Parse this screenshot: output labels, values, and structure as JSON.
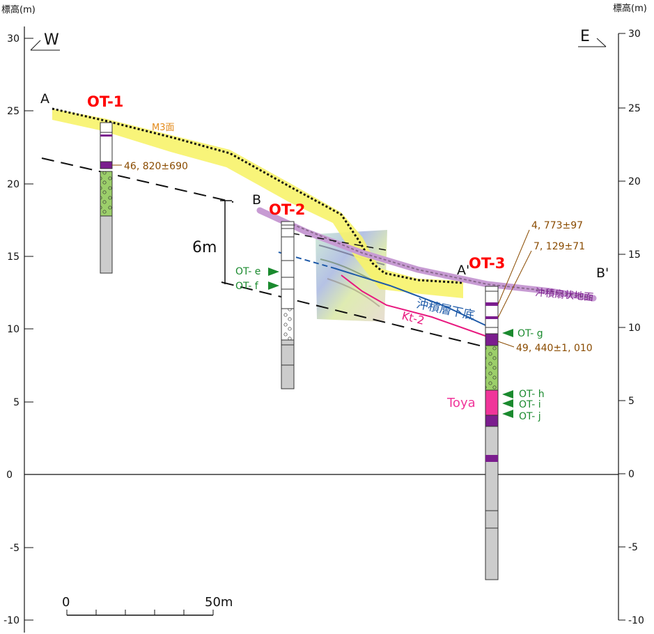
{
  "axes": {
    "left_unit": "標高(m)",
    "right_unit": "標高(m)",
    "ticks": [
      "30",
      "25",
      "20",
      "15",
      "10",
      "5",
      "0",
      "-5",
      "-10"
    ]
  },
  "direction": {
    "west": "W",
    "east": "E"
  },
  "section_points": {
    "a": "A",
    "a_prime": "A'",
    "b": "B",
    "b_prime": "B'"
  },
  "boreholes": {
    "ot1": "OT-1",
    "ot2": "OT-2",
    "ot3": "OT-3"
  },
  "surfaces": {
    "m3": "M3面",
    "alluvial_fan": "沖積扇状地面",
    "alluvial_base": "沖積層下底",
    "kt2": "Kt-2",
    "toya": "Toya"
  },
  "offset_label": "6m",
  "ages": {
    "ot1": "46, 820±690",
    "ot3_a": "4, 773±97",
    "ot3_b": "7, 129±71",
    "ot3_c": "49, 440±1, 010"
  },
  "samples": [
    "OT- e",
    "OT- f",
    "OT- g",
    "OT- h",
    "OT- i",
    "OT- j"
  ],
  "scale": {
    "start": "0",
    "end": "50m"
  },
  "colors": {
    "m3_band": "#f7f36a",
    "fan_band": "#c79bd3",
    "purple_layer": "#7b1d8e",
    "gravel_green": "#9ccf6a",
    "toya_pink": "#f0359a",
    "gray_layer": "#cccccc",
    "base_blue": "#1e5aa8",
    "kt2_pink": "#e8197f",
    "title_red": "#ff0000"
  }
}
